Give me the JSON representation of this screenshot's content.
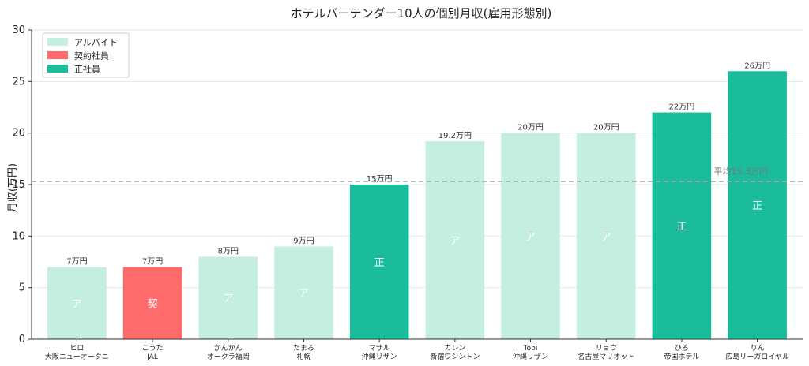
{
  "chart_data": {
    "type": "bar",
    "title": "ホテルバーテンダー10人の個別月収(雇用形態別)",
    "ylabel": "月収(万円)",
    "xlabel": "",
    "ylim": [
      0,
      30
    ],
    "yticks": [
      0,
      5,
      10,
      15,
      20,
      25,
      30
    ],
    "grid": true,
    "legend_position": "top-left",
    "legend": [
      {
        "key": "part",
        "label": "アルバイト",
        "color": "#c5eee2"
      },
      {
        "key": "contract",
        "label": "契約社員",
        "color": "#ff6b6b"
      },
      {
        "key": "regular",
        "label": "正社員",
        "color": "#1abc9c"
      }
    ],
    "average": {
      "value": 15.3,
      "label": "平均15.3万円",
      "color": "#aaaaaa"
    },
    "bars": [
      {
        "name": "ヒロ",
        "place": "大阪ニューオータニ",
        "value": 7,
        "value_label": "7万円",
        "type": "part",
        "inner": "ア"
      },
      {
        "name": "こうた",
        "place": "JAL",
        "value": 7,
        "value_label": "7万円",
        "type": "contract",
        "inner": "契"
      },
      {
        "name": "かんかん",
        "place": "オークラ福岡",
        "value": 8,
        "value_label": "8万円",
        "type": "part",
        "inner": "ア"
      },
      {
        "name": "たまる",
        "place": "札幌",
        "value": 9,
        "value_label": "9万円",
        "type": "part",
        "inner": "ア"
      },
      {
        "name": "マサル",
        "place": "沖縄リザン",
        "value": 15,
        "value_label": "15万円",
        "type": "regular",
        "inner": "正"
      },
      {
        "name": "カレン",
        "place": "新宿ワシントン",
        "value": 19.2,
        "value_label": "19.2万円",
        "type": "part",
        "inner": "ア"
      },
      {
        "name": "Tobi",
        "place": "沖縄リザン",
        "value": 20,
        "value_label": "20万円",
        "type": "part",
        "inner": "ア"
      },
      {
        "name": "リョウ",
        "place": "名古屋マリオット",
        "value": 20,
        "value_label": "20万円",
        "type": "part",
        "inner": "ア"
      },
      {
        "name": "ひろ",
        "place": "帝国ホテル",
        "value": 22,
        "value_label": "22万円",
        "type": "regular",
        "inner": "正"
      },
      {
        "name": "りん",
        "place": "広島リーガロイヤル",
        "value": 26,
        "value_label": "26万円",
        "type": "regular",
        "inner": "正"
      }
    ]
  }
}
